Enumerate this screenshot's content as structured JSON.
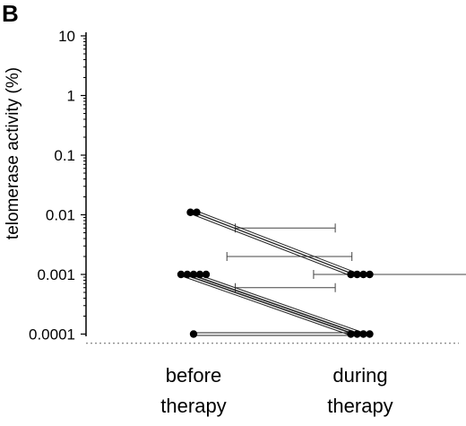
{
  "chart_data": {
    "type": "scatter",
    "panel_label": "B",
    "ylabel": "telomerase activity (%)",
    "yscale": "log",
    "yticks": [
      "10",
      "1",
      "0.1",
      "0.01",
      "0.001",
      "0.0001"
    ],
    "categories": [
      "before\ntherapy",
      "during\ntherapy"
    ],
    "paired_lines": [
      {
        "before": 0.011,
        "during": 0.001
      },
      {
        "before": 0.011,
        "during": 0.001
      },
      {
        "before": 0.001,
        "during": 0.0001
      },
      {
        "before": 0.001,
        "during": 0.0001
      },
      {
        "before": 0.001,
        "during": 0.0001
      },
      {
        "before": 0.0001,
        "during": 0.0001
      }
    ],
    "points": {
      "before": [
        {
          "y": 0.011,
          "count": 2
        },
        {
          "y": 0.001,
          "count": 5
        },
        {
          "y": 0.0001,
          "count": 1
        }
      ],
      "during": [
        {
          "y": 0.001,
          "count": 4
        },
        {
          "y": 0.0001,
          "count": 4
        }
      ]
    },
    "reference_ranges": [
      {
        "y": 0.006,
        "x_from": 0.25,
        "x_to": 0.85
      },
      {
        "y": 0.002,
        "x_from": 0.2,
        "x_to": 0.95
      },
      {
        "y": 0.001,
        "x_from": 0.72,
        "x_to": 2.6
      },
      {
        "y": 0.0006,
        "x_from": 0.25,
        "x_to": 0.85
      }
    ],
    "detection_limit": 7e-05,
    "grid": false
  }
}
